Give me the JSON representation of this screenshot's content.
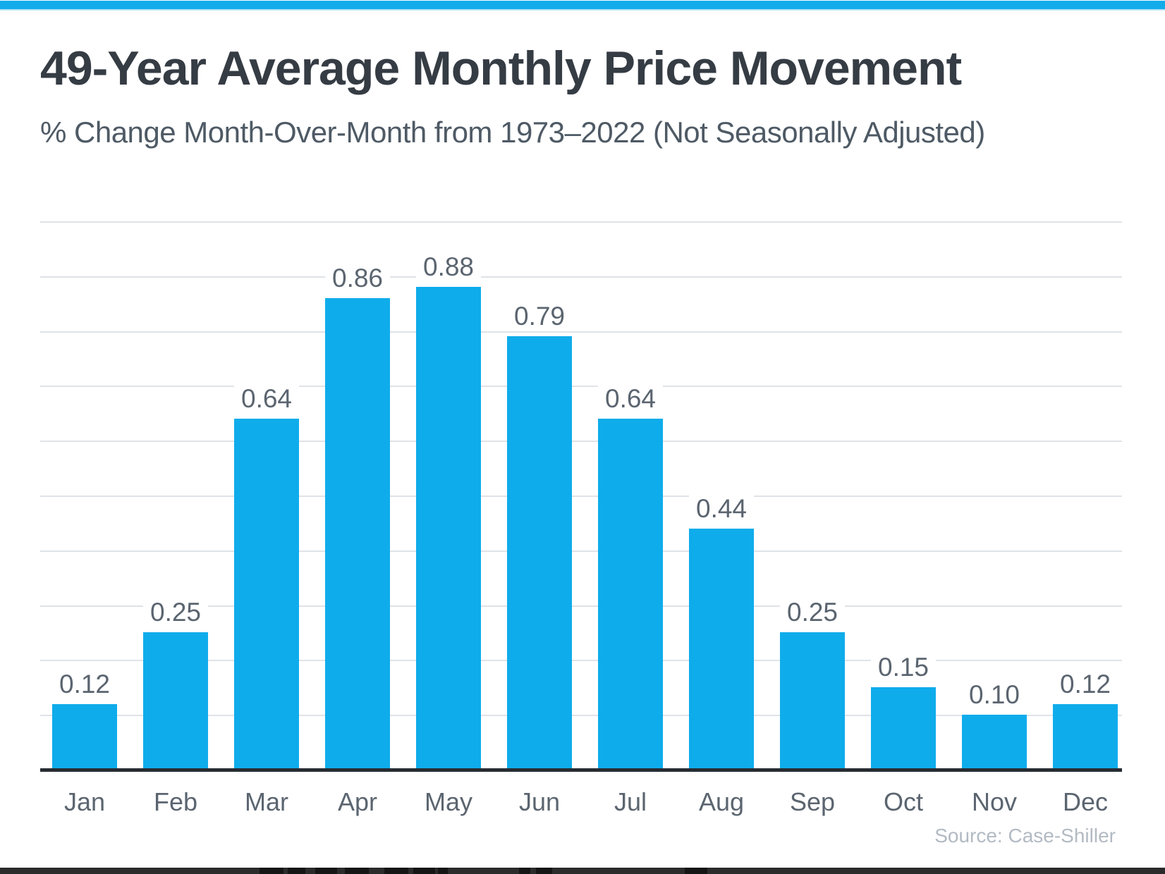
{
  "page": {
    "title": "49-Year Average Monthly Price Movement",
    "subtitle": "% Change Month-Over-Month from 1973–2022 (Not Seasonally Adjusted)",
    "source": "Source: Case-Shiller"
  },
  "colors": {
    "accent": "#0FACEB",
    "top_strip": "#12ACEA",
    "title_text": "#353C44",
    "subtitle_text": "#4E5A65",
    "label_text": "#5B6570",
    "gridline": "#DFE3E7",
    "axis": "#272C33",
    "source_text": "#B2BAC3"
  },
  "chart_data": {
    "type": "bar",
    "title": "49-Year Average Monthly Price Movement",
    "subtitle": "% Change Month-Over-Month from 1973–2022 (Not Seasonally Adjusted)",
    "categories": [
      "Jan",
      "Feb",
      "Mar",
      "Apr",
      "May",
      "Jun",
      "Jul",
      "Aug",
      "Sep",
      "Oct",
      "Nov",
      "Dec"
    ],
    "values": [
      0.12,
      0.25,
      0.64,
      0.86,
      0.88,
      0.79,
      0.64,
      0.44,
      0.25,
      0.15,
      0.1,
      0.12
    ],
    "value_labels": [
      "0.12",
      "0.25",
      "0.64",
      "0.86",
      "0.88",
      "0.79",
      "0.64",
      "0.44",
      "0.25",
      "0.15",
      "0.10",
      "0.12"
    ],
    "xlabel": "",
    "ylabel": "",
    "ylim": [
      0,
      1.0
    ],
    "gridline_step": 0.1,
    "grid": true,
    "legend": false,
    "bar_color": "#0FACEB",
    "source": "Source: Case-Shiller"
  }
}
